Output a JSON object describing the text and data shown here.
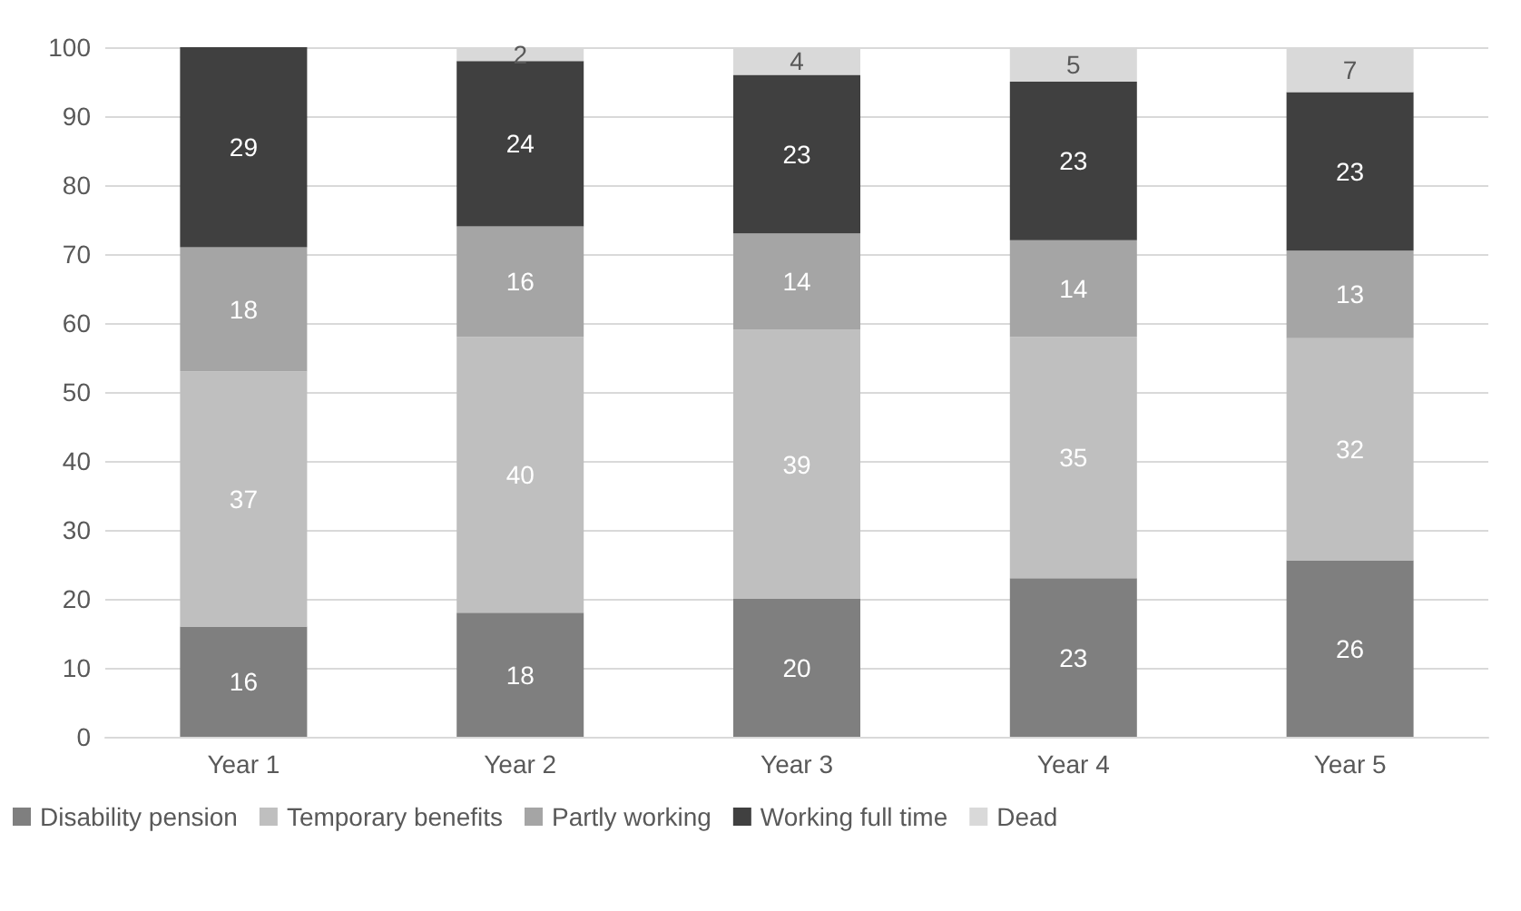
{
  "chart_data": {
    "type": "bar",
    "stacked": true,
    "categories": [
      "Year 1",
      "Year 2",
      "Year 3",
      "Year 4",
      "Year 5"
    ],
    "series": [
      {
        "name": "Disability pension",
        "color": "#7f7f7f",
        "values": [
          16,
          18,
          20,
          23,
          25.6
        ],
        "value_labels": [
          "16",
          "18",
          "20",
          "23",
          "26"
        ]
      },
      {
        "name": "Temporary benefits",
        "color": "#bfbfbf",
        "values": [
          37,
          40,
          39,
          35,
          32.2
        ],
        "value_labels": [
          "37",
          "40",
          "39",
          "35",
          "32"
        ]
      },
      {
        "name": "Partly working",
        "color": "#a5a5a5",
        "values": [
          18,
          16,
          14,
          14,
          12.7
        ],
        "value_labels": [
          "18",
          "16",
          "14",
          "14",
          "13"
        ]
      },
      {
        "name": "Working full time",
        "color": "#404040",
        "values": [
          29,
          24,
          23,
          23,
          23
        ],
        "value_labels": [
          "29",
          "24",
          "23",
          "23",
          "23"
        ]
      },
      {
        "name": "Dead",
        "color": "#d9d9d9",
        "values": [
          null,
          2,
          4,
          5,
          6.5
        ],
        "value_labels": [
          null,
          "2",
          "4",
          "5",
          "7"
        ]
      }
    ],
    "ylim": [
      0,
      100
    ],
    "yticks": [
      0,
      10,
      20,
      30,
      40,
      50,
      60,
      70,
      80,
      90,
      100
    ],
    "grid": "y",
    "legend": "bottom"
  }
}
